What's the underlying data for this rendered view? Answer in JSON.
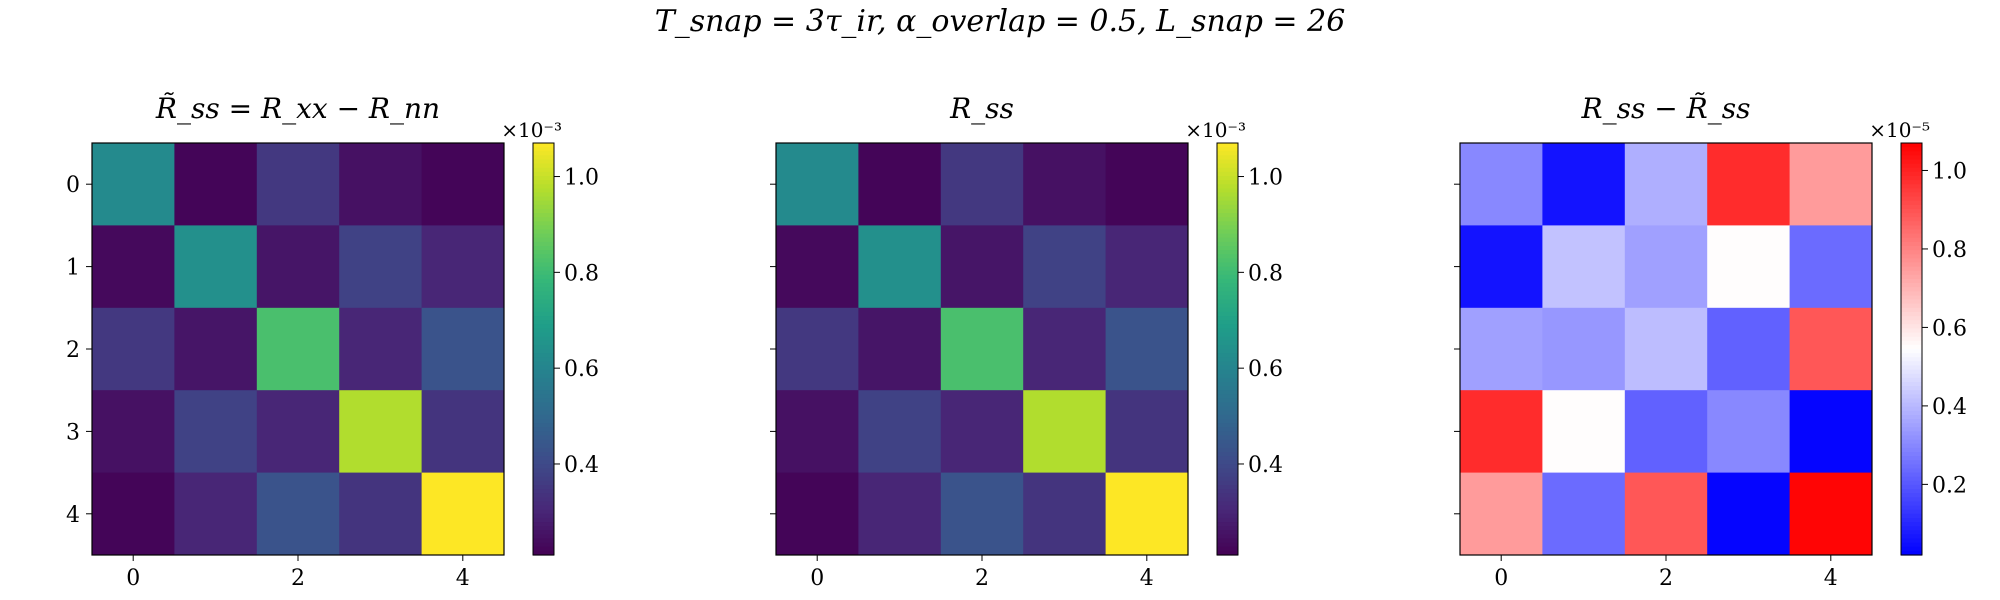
{
  "suptitle": "T_snap = 3τ_ir,   α_overlap = 0.5,   L_snap = 26",
  "chart_data": [
    {
      "type": "heatmap",
      "title": "R̃_ss = R_xx − R_nn",
      "colormap": "viridis",
      "x_ticks": [
        "0",
        "2",
        "4"
      ],
      "y_ticks": [
        "0",
        "1",
        "2",
        "3",
        "4"
      ],
      "colorbar": {
        "exponent": "×10⁻³",
        "ticks": [
          "0.4",
          "0.6",
          "0.8",
          "1.0"
        ],
        "tick_values": [
          0.4,
          0.6,
          0.8,
          1.0
        ],
        "vmin": 0.21,
        "vmax": 1.07
      },
      "values": [
        [
          0.62,
          0.22,
          0.35,
          0.25,
          0.22
        ],
        [
          0.23,
          0.64,
          0.26,
          0.38,
          0.3
        ],
        [
          0.35,
          0.26,
          0.82,
          0.3,
          0.43
        ],
        [
          0.25,
          0.38,
          0.3,
          0.97,
          0.34
        ],
        [
          0.22,
          0.3,
          0.43,
          0.34,
          1.07
        ]
      ]
    },
    {
      "type": "heatmap",
      "title": "R_ss",
      "colormap": "viridis",
      "x_ticks": [
        "0",
        "2",
        "4"
      ],
      "y_ticks": [
        "0",
        "1",
        "2",
        "3",
        "4"
      ],
      "colorbar": {
        "exponent": "×10⁻³",
        "ticks": [
          "0.4",
          "0.6",
          "0.8",
          "1.0"
        ],
        "tick_values": [
          0.4,
          0.6,
          0.8,
          1.0
        ],
        "vmin": 0.21,
        "vmax": 1.07
      },
      "values": [
        [
          0.62,
          0.22,
          0.35,
          0.25,
          0.22
        ],
        [
          0.23,
          0.64,
          0.26,
          0.38,
          0.3
        ],
        [
          0.35,
          0.26,
          0.82,
          0.3,
          0.43
        ],
        [
          0.25,
          0.38,
          0.3,
          0.97,
          0.34
        ],
        [
          0.22,
          0.3,
          0.43,
          0.34,
          1.07
        ]
      ]
    },
    {
      "type": "heatmap",
      "title": "R_ss − R̃_ss",
      "colormap": "bwr",
      "x_ticks": [
        "0",
        "2",
        "4"
      ],
      "y_ticks": [
        "0",
        "1",
        "2",
        "3",
        "4"
      ],
      "colorbar": {
        "exponent": "×10⁻⁵",
        "ticks": [
          "0.2",
          "0.4",
          "0.6",
          "0.8",
          "1.0"
        ],
        "tick_values": [
          0.2,
          0.4,
          0.6,
          0.8,
          1.0
        ],
        "vmin": 0.02,
        "vmax": 1.07
      },
      "values": [
        [
          0.3,
          0.06,
          0.38,
          0.98,
          0.75
        ],
        [
          0.06,
          0.42,
          0.35,
          0.55,
          0.24
        ],
        [
          0.35,
          0.33,
          0.41,
          0.22,
          0.89
        ],
        [
          0.98,
          0.55,
          0.22,
          0.3,
          0.03
        ],
        [
          0.75,
          0.24,
          0.89,
          0.03,
          1.06
        ]
      ]
    }
  ]
}
